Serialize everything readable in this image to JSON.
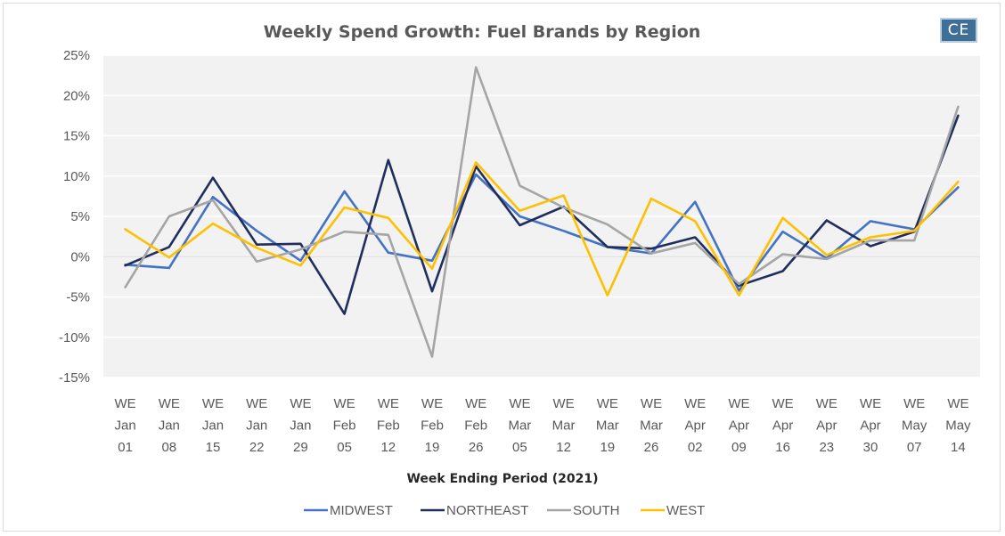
{
  "chart_data": {
    "type": "line",
    "title": "Weekly Spend Growth: Fuel Brands by Region",
    "xlabel": "Week Ending Period (2021)",
    "ylabel": "",
    "ylim": [
      -15,
      25
    ],
    "y_ticks": [
      "25%",
      "20%",
      "15%",
      "10%",
      "5%",
      "0%",
      "-5%",
      "-10%",
      "-15%"
    ],
    "y_tick_values": [
      25,
      20,
      15,
      10,
      5,
      0,
      -5,
      -10,
      -15
    ],
    "categories": [
      [
        "WE",
        "Jan",
        "01"
      ],
      [
        "WE",
        "Jan",
        "08"
      ],
      [
        "WE",
        "Jan",
        "15"
      ],
      [
        "WE",
        "Jan",
        "22"
      ],
      [
        "WE",
        "Jan",
        "29"
      ],
      [
        "WE",
        "Feb",
        "05"
      ],
      [
        "WE",
        "Feb",
        "12"
      ],
      [
        "WE",
        "Feb",
        "19"
      ],
      [
        "WE",
        "Feb",
        "26"
      ],
      [
        "WE",
        "Mar",
        "05"
      ],
      [
        "WE",
        "Mar",
        "12"
      ],
      [
        "WE",
        "Mar",
        "19"
      ],
      [
        "WE",
        "Mar",
        "26"
      ],
      [
        "WE",
        "Apr",
        "02"
      ],
      [
        "WE",
        "Apr",
        "09"
      ],
      [
        "WE",
        "Apr",
        "16"
      ],
      [
        "WE",
        "Apr",
        "23"
      ],
      [
        "WE",
        "Apr",
        "30"
      ],
      [
        "WE",
        "May",
        "07"
      ],
      [
        "WE",
        "May",
        "14"
      ]
    ],
    "grid": true,
    "legend_position": "bottom",
    "series": [
      {
        "name": "MIDWEST",
        "color": "#4472c4",
        "values": [
          -1.0,
          -1.4,
          7.4,
          3.2,
          -0.5,
          8.1,
          0.5,
          -0.5,
          10.2,
          5.0,
          3.2,
          1.2,
          0.4,
          6.8,
          -4.2,
          3.1,
          -0.2,
          4.4,
          3.4,
          8.6
        ]
      },
      {
        "name": "NORTHEAST",
        "color": "#1f2e5c",
        "values": [
          -1.1,
          1.2,
          9.8,
          1.5,
          1.6,
          -7.1,
          12.0,
          -4.3,
          11.2,
          3.9,
          6.2,
          1.2,
          1.0,
          2.4,
          -3.6,
          -1.8,
          4.5,
          1.3,
          3.1,
          17.5
        ]
      },
      {
        "name": "SOUTH",
        "color": "#a5a5a5",
        "values": [
          -3.8,
          5.0,
          7.0,
          -0.6,
          0.9,
          3.1,
          2.7,
          -12.4,
          23.5,
          8.8,
          6.1,
          4.0,
          0.4,
          1.7,
          -3.4,
          0.3,
          -0.3,
          2.0,
          2.0,
          18.6
        ]
      },
      {
        "name": "WEST",
        "color": "#ffc000",
        "values": [
          3.4,
          -0.1,
          4.1,
          1.1,
          -1.1,
          6.1,
          4.8,
          -1.5,
          11.7,
          5.7,
          7.6,
          -4.8,
          7.2,
          4.4,
          -4.8,
          4.8,
          0.2,
          2.4,
          3.2,
          9.3
        ]
      }
    ]
  },
  "brand": {
    "logo_text": "CE",
    "logo_color": "#3f6f97"
  }
}
